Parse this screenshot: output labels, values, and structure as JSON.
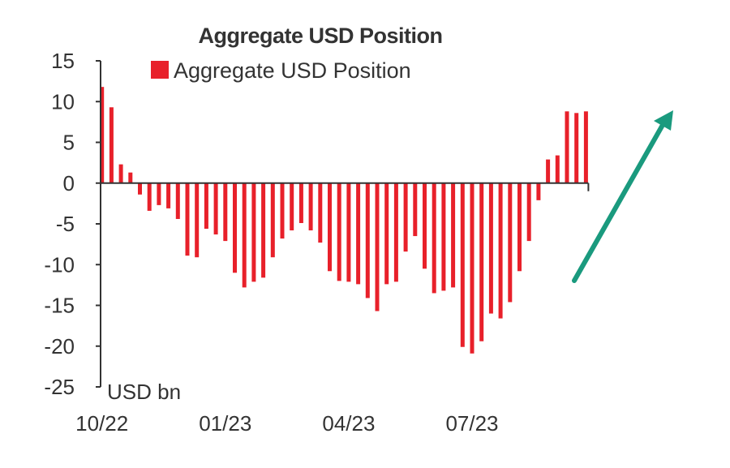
{
  "colors": {
    "bar": "#e8202a",
    "axis": "#333333",
    "arrow": "#1a9a7e",
    "text": "#333333"
  },
  "icons": [
    "up-trend-arrow-icon"
  ],
  "chart_data": {
    "type": "bar",
    "title": "Aggregate USD Position",
    "legend": {
      "label": "Aggregate USD Position",
      "position": "top"
    },
    "ylabel": "USD bn",
    "ylim": [
      -25,
      15
    ],
    "yticks": [
      15,
      10,
      5,
      0,
      -5,
      -10,
      -15,
      -20,
      -25
    ],
    "ytick_labels": [
      "15",
      "10",
      "5",
      "0",
      "-5",
      "-10",
      "-15",
      "-20",
      "-25"
    ],
    "xtick_labels": [
      {
        "label": "10/22",
        "index": 0
      },
      {
        "label": "01/23",
        "index": 13
      },
      {
        "label": "04/23",
        "index": 26
      },
      {
        "label": "07/23",
        "index": 39
      }
    ],
    "grid": false,
    "series": [
      {
        "name": "Aggregate USD Position",
        "values": [
          11.8,
          9.3,
          2.3,
          1.3,
          -1.4,
          -3.4,
          -2.7,
          -3.1,
          -4.4,
          -8.9,
          -9.1,
          -5.6,
          -6.3,
          -7.1,
          -11.0,
          -12.8,
          -12.1,
          -11.6,
          -9.1,
          -6.8,
          -5.8,
          -4.9,
          -5.8,
          -7.3,
          -10.8,
          -12.0,
          -12.1,
          -12.4,
          -14.1,
          -15.7,
          -12.4,
          -12.1,
          -8.4,
          -6.5,
          -10.5,
          -13.5,
          -13.2,
          -12.8,
          -20.1,
          -20.9,
          -19.4,
          -16.0,
          -16.6,
          -14.6,
          -10.8,
          -7.1,
          -2.1,
          2.9,
          3.4,
          8.8,
          8.6,
          8.8
        ]
      }
    ]
  }
}
